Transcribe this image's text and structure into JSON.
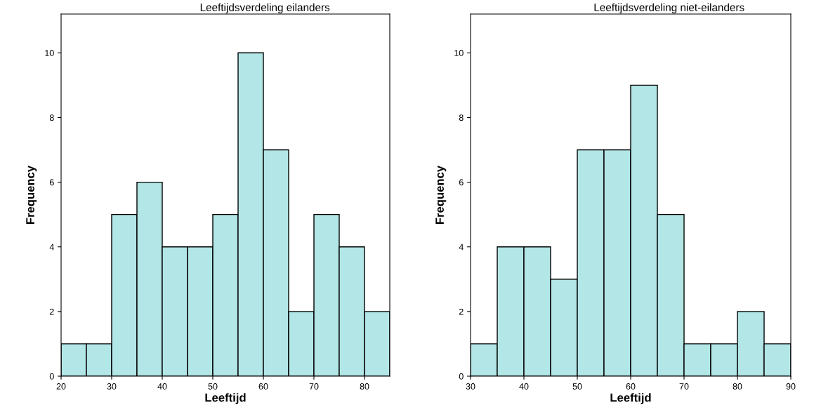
{
  "chart_data": [
    {
      "type": "histogram",
      "title": "Leeftijdsverdeling eilanders",
      "xlabel": "Leeftijd",
      "ylabel": "Frequency",
      "bins": [
        20,
        25,
        30,
        35,
        40,
        45,
        50,
        55,
        60,
        65,
        70,
        75,
        80,
        85
      ],
      "values": [
        1,
        1,
        5,
        6,
        4,
        4,
        5,
        10,
        7,
        2,
        5,
        4,
        2
      ],
      "color": "#b3e6e6",
      "xlim": [
        20,
        85
      ],
      "xticks": [
        20,
        30,
        40,
        50,
        60,
        70,
        80
      ],
      "ylim": [
        0,
        11.2
      ],
      "yticks": [
        0,
        2,
        4,
        6,
        8,
        10
      ],
      "grid": false
    },
    {
      "type": "histogram",
      "title": "Leeftijdsverdeling niet-eilanders",
      "xlabel": "Leeftijd",
      "ylabel": "Frequency",
      "bins": [
        30,
        35,
        40,
        45,
        50,
        55,
        60,
        65,
        70,
        75,
        80,
        85,
        90
      ],
      "values": [
        1,
        4,
        4,
        3,
        7,
        7,
        9,
        5,
        1,
        1,
        2,
        1
      ],
      "color": "#b3e6e6",
      "xlim": [
        30,
        90
      ],
      "xticks": [
        30,
        40,
        50,
        60,
        70,
        80,
        90
      ],
      "ylim": [
        0,
        11.2
      ],
      "yticks": [
        0,
        2,
        4,
        6,
        8,
        10
      ],
      "grid": false
    }
  ]
}
